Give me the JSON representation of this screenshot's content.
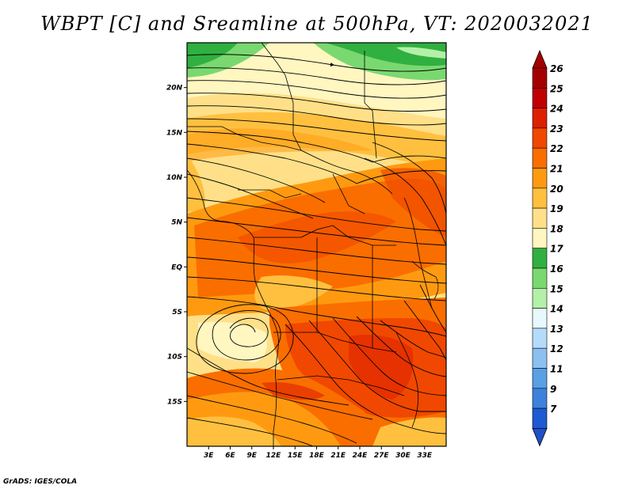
{
  "title": "WBPT [C] and Sreamline at 500hPa, VT: 2020032021",
  "credit": "GrADS: IGES/COLA",
  "map": {
    "lon_range": [
      0,
      36
    ],
    "lat_range": [
      -20,
      25
    ],
    "lon_ticks": [
      {
        "value": 3,
        "label": "3E"
      },
      {
        "value": 6,
        "label": "6E"
      },
      {
        "value": 9,
        "label": "9E"
      },
      {
        "value": 12,
        "label": "12E"
      },
      {
        "value": 15,
        "label": "15E"
      },
      {
        "value": 18,
        "label": "18E"
      },
      {
        "value": 21,
        "label": "21E"
      },
      {
        "value": 24,
        "label": "24E"
      },
      {
        "value": 27,
        "label": "27E"
      },
      {
        "value": 30,
        "label": "30E"
      },
      {
        "value": 33,
        "label": "33E"
      }
    ],
    "lat_ticks": [
      {
        "value": 20,
        "label": "20N"
      },
      {
        "value": 15,
        "label": "15N"
      },
      {
        "value": 10,
        "label": "10N"
      },
      {
        "value": 5,
        "label": "5N"
      },
      {
        "value": 0,
        "label": "EQ"
      },
      {
        "value": -5,
        "label": "5S"
      },
      {
        "value": -10,
        "label": "10S"
      },
      {
        "value": -15,
        "label": "15S"
      }
    ]
  },
  "colorbar": {
    "levels": [
      {
        "label": "26",
        "color": "#a50000"
      },
      {
        "label": "25",
        "color": "#c00000"
      },
      {
        "label": "24",
        "color": "#dd2000"
      },
      {
        "label": "23",
        "color": "#f04800"
      },
      {
        "label": "22",
        "color": "#fa6e00"
      },
      {
        "label": "21",
        "color": "#ff9a10"
      },
      {
        "label": "20",
        "color": "#ffc040"
      },
      {
        "label": "19",
        "color": "#ffe088"
      },
      {
        "label": "18",
        "color": "#fff6c0"
      },
      {
        "label": "17",
        "color": "#30b040"
      },
      {
        "label": "16",
        "color": "#7ad870"
      },
      {
        "label": "15",
        "color": "#b4f0a8"
      },
      {
        "label": "14",
        "color": "#e6fafe"
      },
      {
        "label": "13",
        "color": "#b4dcfa"
      },
      {
        "label": "12",
        "color": "#8cc0f0"
      },
      {
        "label": "11",
        "color": "#5aa0e6"
      },
      {
        "label": "9",
        "color": "#3c82dc"
      },
      {
        "label": "7",
        "color": "#1e5ad2"
      }
    ],
    "top_arrow_color": "#a50000",
    "bottom_arrow_color": "#1e50c8"
  }
}
